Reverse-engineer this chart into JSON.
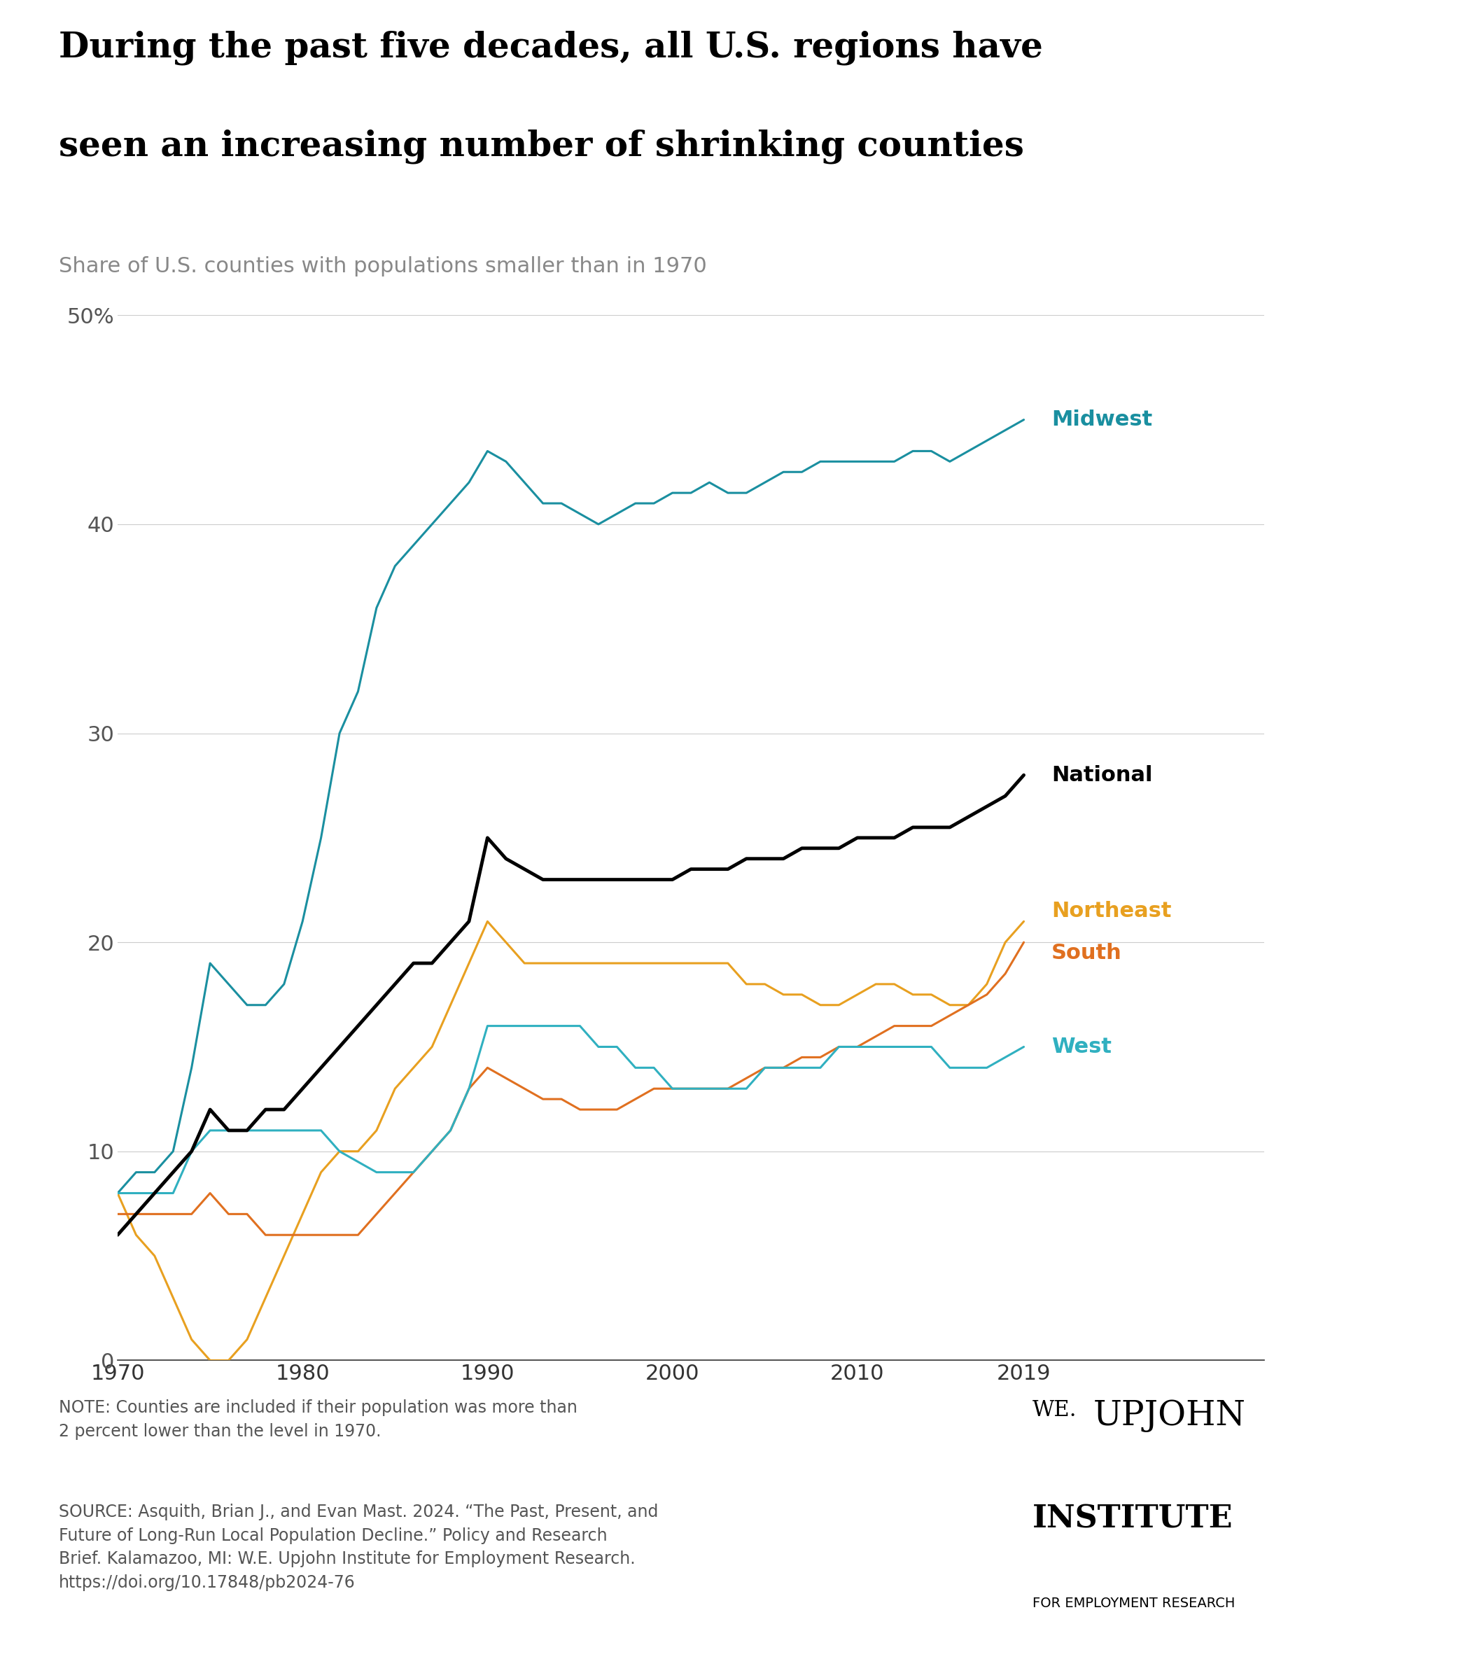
{
  "title_line1": "During the past five decades, all U.S. regions have",
  "title_line2": "seen an increasing number of shrinking counties",
  "subtitle": "Share of U.S. counties with populations smaller than in 1970",
  "note": "NOTE: Counties are included if their population was more than\n2 percent lower than the level in 1970.",
  "source": "SOURCE: Asquith, Brian J., and Evan Mast. 2024. “The Past, Present, and\nFuture of Long-Run Local Population Decline.” Policy and Research\nBrief. Kalamazoo, MI: W.E. Upjohn Institute for Employment Research.\nhttps://doi.org/10.17848/pb2024-76",
  "colors": {
    "Midwest": "#1a8fa0",
    "National": "#000000",
    "Northeast": "#e8a020",
    "South": "#e07020",
    "West": "#30b0c0"
  },
  "years": [
    1970,
    1971,
    1972,
    1973,
    1974,
    1975,
    1976,
    1977,
    1978,
    1979,
    1980,
    1981,
    1982,
    1983,
    1984,
    1985,
    1986,
    1987,
    1988,
    1989,
    1990,
    1991,
    1992,
    1993,
    1994,
    1995,
    1996,
    1997,
    1998,
    1999,
    2000,
    2001,
    2002,
    2003,
    2004,
    2005,
    2006,
    2007,
    2008,
    2009,
    2010,
    2011,
    2012,
    2013,
    2014,
    2015,
    2016,
    2017,
    2018,
    2019
  ],
  "Midwest": [
    8,
    9,
    9,
    10,
    14,
    19,
    18,
    17,
    17,
    18,
    21,
    25,
    30,
    32,
    36,
    38,
    39,
    40,
    41,
    42,
    43.5,
    43,
    42,
    41,
    41,
    40.5,
    40,
    40.5,
    41,
    41,
    41.5,
    41.5,
    42,
    41.5,
    41.5,
    42,
    42.5,
    42.5,
    43,
    43,
    43,
    43,
    43,
    43.5,
    43.5,
    43,
    43.5,
    44,
    44.5,
    45
  ],
  "National": [
    6,
    7,
    8,
    9,
    10,
    12,
    11,
    11,
    12,
    12,
    13,
    14,
    15,
    16,
    17,
    18,
    19,
    19,
    20,
    21,
    25,
    24,
    23.5,
    23,
    23,
    23,
    23,
    23,
    23,
    23,
    23,
    23.5,
    23.5,
    23.5,
    24,
    24,
    24,
    24.5,
    24.5,
    24.5,
    25,
    25,
    25,
    25.5,
    25.5,
    25.5,
    26,
    26.5,
    27,
    28
  ],
  "Northeast": [
    8,
    6,
    5,
    3,
    1,
    0,
    0,
    1,
    3,
    5,
    7,
    9,
    10,
    10,
    11,
    13,
    14,
    15,
    17,
    19,
    21,
    20,
    19,
    19,
    19,
    19,
    19,
    19,
    19,
    19,
    19,
    19,
    19,
    19,
    18,
    18,
    17.5,
    17.5,
    17,
    17,
    17.5,
    18,
    18,
    17.5,
    17.5,
    17,
    17,
    18,
    20,
    21
  ],
  "South": [
    7,
    7,
    7,
    7,
    7,
    8,
    7,
    7,
    6,
    6,
    6,
    6,
    6,
    6,
    7,
    8,
    9,
    10,
    11,
    13,
    14,
    13.5,
    13,
    12.5,
    12.5,
    12,
    12,
    12,
    12.5,
    13,
    13,
    13,
    13,
    13,
    13.5,
    14,
    14,
    14.5,
    14.5,
    15,
    15,
    15.5,
    16,
    16,
    16,
    16.5,
    17,
    17.5,
    18.5,
    20
  ],
  "West": [
    8,
    8,
    8,
    8,
    10,
    11,
    11,
    11,
    11,
    11,
    11,
    11,
    10,
    9.5,
    9,
    9,
    9,
    10,
    11,
    13,
    16,
    16,
    16,
    16,
    16,
    16,
    15,
    15,
    14,
    14,
    13,
    13,
    13,
    13,
    13,
    14,
    14,
    14,
    14,
    15,
    15,
    15,
    15,
    15,
    15,
    14,
    14,
    14,
    14.5,
    15
  ],
  "ylim": [
    0,
    50
  ],
  "yticks": [
    0,
    10,
    20,
    30,
    40,
    50
  ],
  "ytick_labels": [
    "0",
    "10",
    "20",
    "30",
    "40",
    "50%"
  ],
  "xticks": [
    1970,
    1980,
    1990,
    2000,
    2010,
    2019
  ],
  "background_color": "#ffffff",
  "grid_color": "#cccccc",
  "title_fontsize": 36,
  "subtitle_fontsize": 22,
  "label_fontsize": 22,
  "note_fontsize": 17
}
